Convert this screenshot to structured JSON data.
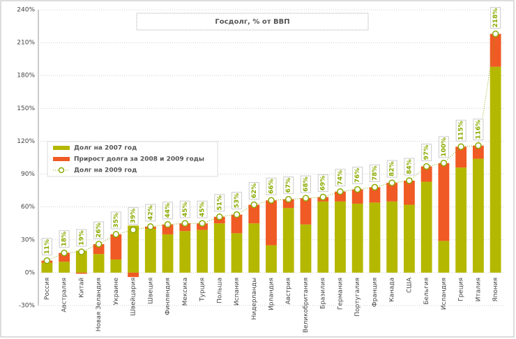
{
  "chart_data": {
    "type": "bar",
    "title": "Госдолг, % от ВВП",
    "categories": [
      "Россия",
      "Австралия",
      "Китай",
      "Новая Зеландия",
      "Украине",
      "Швейцария",
      "Швеция",
      "Финляндия",
      "Мексика",
      "Турция",
      "Польша",
      "Испания",
      "Нидерланды",
      "Ирландия",
      "Австрия",
      "Великобритания",
      "Бразилия",
      "Германия",
      "Португалия",
      "Франция",
      "Канада",
      "США",
      "Бельгия",
      "Исландия",
      "Греция",
      "Италия",
      "Япония"
    ],
    "series": [
      {
        "name": "Долг на 2007 год",
        "color": "#b5b800",
        "values": [
          9,
          10,
          20,
          17,
          12,
          43,
          40,
          35,
          38,
          39,
          45,
          36,
          45,
          25,
          59,
          44,
          65,
          65,
          63,
          64,
          65,
          62,
          83,
          29,
          96,
          104,
          188
        ]
      },
      {
        "name": "Прирост долга за 2008 и 2009 годы",
        "color": "#f05a24",
        "values": [
          2,
          8,
          -1,
          9,
          23,
          -4,
          2,
          9,
          7,
          6,
          6,
          17,
          17,
          41,
          8,
          24,
          4,
          9,
          13,
          14,
          17,
          22,
          14,
          71,
          19,
          12,
          30
        ]
      },
      {
        "name": "Долг на 2009 год",
        "color": "#8aaa00",
        "values": [
          11,
          18,
          19,
          26,
          35,
          39,
          42,
          44,
          45,
          45,
          51,
          53,
          62,
          66,
          67,
          68,
          69,
          74,
          76,
          78,
          82,
          84,
          97,
          100,
          115,
          116,
          218
        ],
        "value_labels": [
          "11%",
          "18%",
          "19%",
          "26%",
          "35%",
          "39%",
          "42%",
          "44%",
          "45%",
          "45%",
          "51%",
          "53%",
          "62%",
          "66%",
          "67%",
          "68%",
          "69%",
          "74%",
          "76%",
          "78%",
          "82%",
          "84%",
          "97%",
          "100%",
          "115%",
          "116%",
          "218%"
        ]
      }
    ],
    "ylim": [
      -30,
      240
    ],
    "yticks": [
      {
        "value": -30,
        "label": "-30%"
      },
      {
        "value": 0,
        "label": "0%"
      },
      {
        "value": 30,
        "label": "30%"
      },
      {
        "value": 60,
        "label": "60%"
      },
      {
        "value": 90,
        "label": "90%"
      },
      {
        "value": 120,
        "label": "120%"
      },
      {
        "value": 150,
        "label": "150%"
      },
      {
        "value": 180,
        "label": "180%"
      },
      {
        "value": 210,
        "label": "210%"
      },
      {
        "value": 240,
        "label": "240%"
      }
    ],
    "grid": true,
    "legend": "left"
  }
}
